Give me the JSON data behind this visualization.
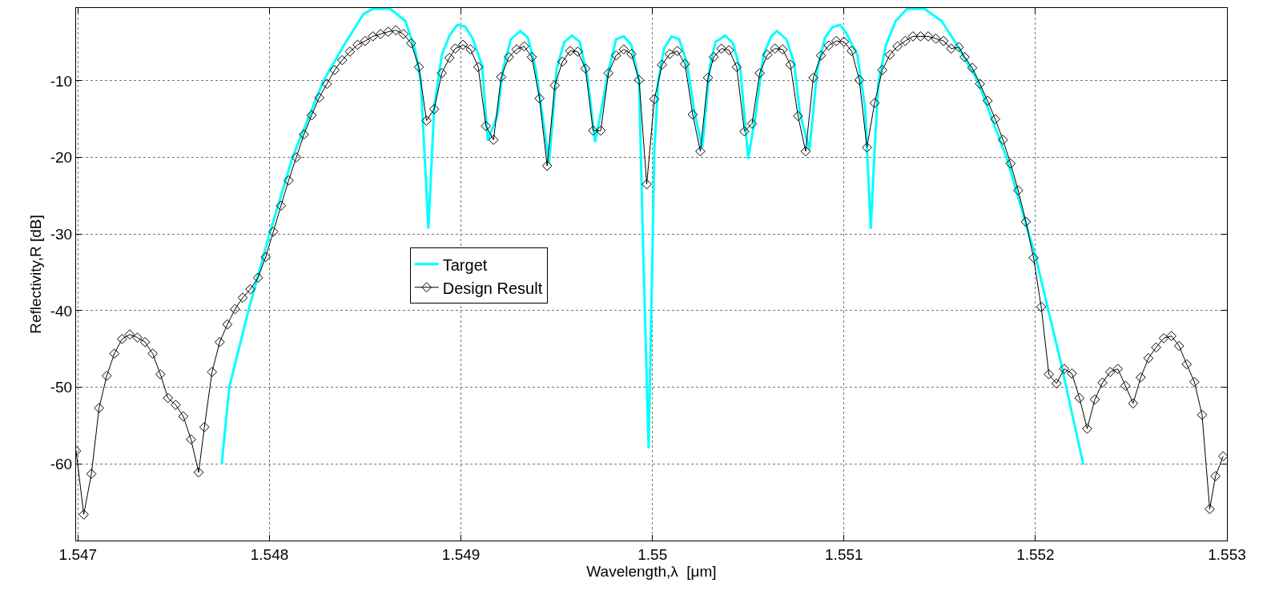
{
  "chart_data": {
    "type": "line",
    "xlabel": "Wavelength,λ  [μm]",
    "ylabel": "Reflectivity,R [dB]",
    "xlim": [
      1.54699,
      1.553
    ],
    "ylim": [
      -70,
      -0.5
    ],
    "xticks": [
      1.547,
      1.548,
      1.549,
      1.55,
      1.551,
      1.552,
      1.553
    ],
    "yticks": [
      -60,
      -50,
      -40,
      -30,
      -20,
      -10
    ],
    "grid": true,
    "legend": "center",
    "line_style": "solid",
    "series": [
      {
        "name": "Target",
        "color": "#00ffff",
        "marker": "none",
        "x": [
          1.54775,
          1.54779,
          1.54789,
          1.548,
          1.54812,
          1.54828,
          1.54839,
          1.54849,
          1.54854,
          1.54863,
          1.54871,
          1.54876,
          1.54879,
          1.54883,
          1.54886,
          1.5489,
          1.54894,
          1.54898,
          1.54902,
          1.54906,
          1.54911,
          1.54914,
          1.54919,
          1.54922,
          1.54926,
          1.54931,
          1.54935,
          1.54939,
          1.54946,
          1.5495,
          1.54954,
          1.54958,
          1.54962,
          1.54966,
          1.5497,
          1.54973,
          1.54977,
          1.54981,
          1.54985,
          1.54989,
          1.54993,
          1.54995,
          1.54998,
          1.55001,
          1.55003,
          1.55006,
          1.5501,
          1.55014,
          1.55018,
          1.55022,
          1.55026,
          1.5503,
          1.55033,
          1.55038,
          1.55042,
          1.55046,
          1.5505,
          1.55054,
          1.55058,
          1.55062,
          1.55065,
          1.5507,
          1.55074,
          1.55077,
          1.55082,
          1.55086,
          1.5509,
          1.55094,
          1.55098,
          1.55101,
          1.55107,
          1.55111,
          1.55114,
          1.55116,
          1.55118,
          1.55122,
          1.55127,
          1.55133,
          1.55142,
          1.55151,
          1.55159,
          1.5517,
          1.55185,
          1.552,
          1.55213,
          1.55225
        ],
        "values": [
          -60.1,
          -50,
          -40,
          -30,
          -20,
          -10.1,
          -5.3,
          -1.3,
          -0.6,
          -0.6,
          -2.2,
          -5.9,
          -10,
          -29.3,
          -13.5,
          -6.6,
          -4.1,
          -2.7,
          -2.9,
          -4.4,
          -8.0,
          -17.8,
          -14.5,
          -8.4,
          -4.6,
          -3.5,
          -4.4,
          -8.4,
          -20.7,
          -8.4,
          -4.9,
          -4.1,
          -4.9,
          -9.4,
          -18.0,
          -14.2,
          -8.7,
          -4.6,
          -4.2,
          -5.3,
          -10,
          -30.7,
          -58,
          -19.0,
          -10.1,
          -5.8,
          -4.2,
          -4.6,
          -7.7,
          -14.2,
          -18.7,
          -8.0,
          -4.9,
          -4.1,
          -5.1,
          -8.7,
          -20.2,
          -14.2,
          -6.6,
          -4.2,
          -3.5,
          -4.6,
          -7.7,
          -14.2,
          -19.0,
          -8.7,
          -4.4,
          -3.0,
          -2.7,
          -3.7,
          -6.6,
          -13.5,
          -29.3,
          -19.0,
          -10.1,
          -5.3,
          -2.2,
          -0.6,
          -0.6,
          -2.2,
          -5.3,
          -10.1,
          -20.1,
          -32.9,
          -46.5,
          -60.1
        ]
      },
      {
        "name": "Design Result",
        "color": "#000000",
        "marker": "diamond",
        "x": [
          1.54699,
          1.54703,
          1.54707,
          1.54711,
          1.54715,
          1.54719,
          1.54723,
          1.54727,
          1.54731,
          1.54735,
          1.54739,
          1.54743,
          1.54747,
          1.54751,
          1.54755,
          1.54759,
          1.54763,
          1.54766,
          1.5477,
          1.54774,
          1.54778,
          1.54782,
          1.54786,
          1.5479,
          1.54794,
          1.54798,
          1.54802,
          1.54806,
          1.5481,
          1.54814,
          1.54818,
          1.54822,
          1.54826,
          1.5483,
          1.54834,
          1.54838,
          1.54842,
          1.54846,
          1.5485,
          1.54854,
          1.54858,
          1.54862,
          1.54866,
          1.5487,
          1.54874,
          1.54878,
          1.54882,
          1.54886,
          1.5489,
          1.54894,
          1.54897,
          1.54901,
          1.54905,
          1.54909,
          1.54913,
          1.54917,
          1.54921,
          1.54925,
          1.54929,
          1.54933,
          1.54937,
          1.54941,
          1.54945,
          1.54949,
          1.54953,
          1.54957,
          1.54961,
          1.54965,
          1.54969,
          1.54973,
          1.54977,
          1.54981,
          1.54985,
          1.54989,
          1.54993,
          1.54997,
          1.55001,
          1.55005,
          1.55009,
          1.55013,
          1.55017,
          1.55021,
          1.55025,
          1.55029,
          1.55032,
          1.55036,
          1.5504,
          1.55044,
          1.55048,
          1.55052,
          1.55056,
          1.5506,
          1.55064,
          1.55068,
          1.55072,
          1.55076,
          1.5508,
          1.55084,
          1.55088,
          1.55092,
          1.55096,
          1.551,
          1.55104,
          1.55108,
          1.55112,
          1.55116,
          1.5512,
          1.55124,
          1.55128,
          1.55132,
          1.55136,
          1.5514,
          1.55144,
          1.55148,
          1.55152,
          1.55156,
          1.5516,
          1.55163,
          1.55167,
          1.55171,
          1.55175,
          1.55179,
          1.55183,
          1.55187,
          1.55191,
          1.55195,
          1.55199,
          1.55203,
          1.55207,
          1.55211,
          1.55215,
          1.55219,
          1.55223,
          1.55227,
          1.55231,
          1.55235,
          1.55239,
          1.55243,
          1.55247,
          1.55251,
          1.55255,
          1.55259,
          1.55263,
          1.55267,
          1.55271,
          1.55275,
          1.55279,
          1.55283,
          1.55287,
          1.55291,
          1.55294,
          1.55298
        ],
        "values": [
          -58.3,
          -66.6,
          -61.3,
          -52.7,
          -48.5,
          -45.6,
          -43.7,
          -43.1,
          -43.5,
          -44.1,
          -45.6,
          -48.3,
          -51.4,
          -52.3,
          -53.8,
          -56.8,
          -61.1,
          -55.2,
          -48.0,
          -44.1,
          -41.8,
          -39.8,
          -38.3,
          -37.2,
          -35.7,
          -33.0,
          -29.7,
          -26.3,
          -23.0,
          -20.0,
          -17.0,
          -14.5,
          -12.2,
          -10.4,
          -8.6,
          -7.3,
          -6.2,
          -5.3,
          -4.8,
          -4.2,
          -3.9,
          -3.6,
          -3.4,
          -3.9,
          -5.1,
          -8.2,
          -15.2,
          -13.7,
          -9.0,
          -7.0,
          -5.8,
          -5.3,
          -5.9,
          -8.2,
          -15.9,
          -17.7,
          -9.5,
          -6.9,
          -5.9,
          -5.5,
          -6.9,
          -12.3,
          -21.1,
          -10.6,
          -7.5,
          -6.1,
          -6.2,
          -8.4,
          -16.5,
          -16.5,
          -9.0,
          -6.7,
          -5.9,
          -6.5,
          -9.9,
          -23.5,
          -12.4,
          -7.9,
          -6.5,
          -6.1,
          -7.8,
          -14.4,
          -19.2,
          -9.6,
          -6.9,
          -5.8,
          -6.0,
          -8.2,
          -16.6,
          -15.6,
          -9.0,
          -6.6,
          -5.8,
          -5.9,
          -7.9,
          -14.6,
          -19.2,
          -9.6,
          -6.7,
          -5.4,
          -4.8,
          -4.9,
          -6.1,
          -9.9,
          -18.7,
          -12.9,
          -8.6,
          -6.6,
          -5.5,
          -4.8,
          -4.2,
          -4.2,
          -4.2,
          -4.5,
          -4.8,
          -5.8,
          -5.6,
          -6.9,
          -8.3,
          -10.4,
          -12.6,
          -15.0,
          -17.7,
          -20.8,
          -24.3,
          -28.4,
          -33.1,
          -39.5,
          -48.3,
          -49.5,
          -47.6,
          -48.2,
          -51.4,
          -55.4,
          -51.6,
          -49.4,
          -48.0,
          -47.6,
          -49.8,
          -52.1,
          -48.7,
          -46.2,
          -44.8,
          -43.6,
          -43.3,
          -44.6,
          -47.0,
          -49.3,
          -53.6,
          -65.9,
          -61.6,
          -59.0
        ]
      }
    ]
  }
}
